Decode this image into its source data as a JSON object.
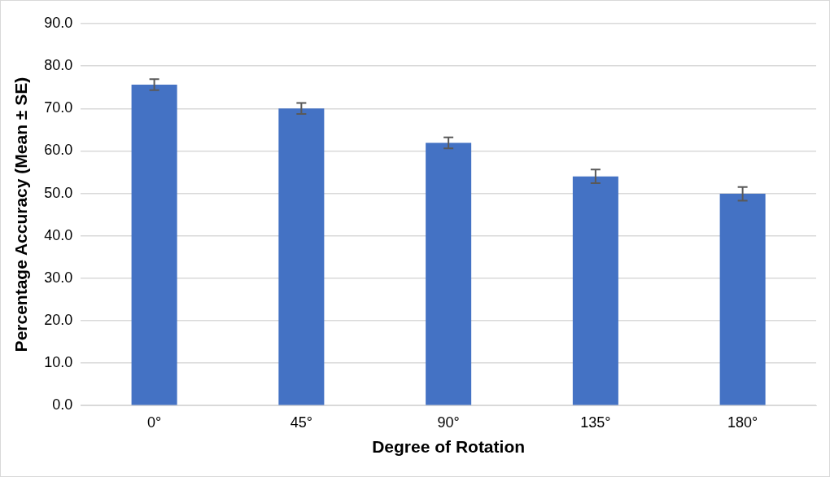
{
  "chart_data": {
    "type": "bar",
    "xlabel": "Degree of Rotation",
    "ylabel": "Percentage Accuracy (Mean ± SE)",
    "categories": [
      "0°",
      "45°",
      "90°",
      "135°",
      "180°"
    ],
    "values": [
      75.6,
      70.0,
      61.9,
      54.0,
      49.9
    ],
    "errors": [
      1.3,
      1.3,
      1.3,
      1.6,
      1.6
    ],
    "color": "#4472c4",
    "ylim": [
      0,
      90
    ],
    "yticks": [
      {
        "value": 0,
        "label": "0.0"
      },
      {
        "value": 10,
        "label": "10.0"
      },
      {
        "value": 20,
        "label": "20.0"
      },
      {
        "value": 30,
        "label": "30.0"
      },
      {
        "value": 40,
        "label": "40.0"
      },
      {
        "value": 50,
        "label": "50.0"
      },
      {
        "value": 60,
        "label": "60.0"
      },
      {
        "value": 70,
        "label": "70.0"
      },
      {
        "value": 80,
        "label": "80.0"
      },
      {
        "value": 90,
        "label": "90.0"
      }
    ],
    "grid": "y"
  }
}
